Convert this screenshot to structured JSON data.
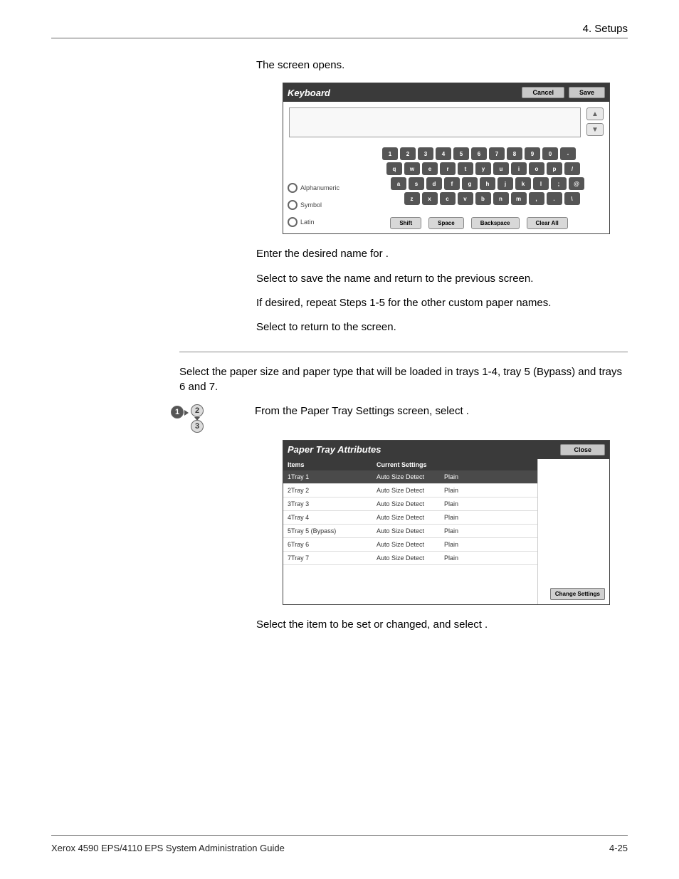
{
  "header": {
    "chapter": "4. Setups"
  },
  "body": {
    "p1_a": "The ",
    "p1_b": " screen opens.",
    "p2_a": "Enter the desired name for ",
    "p2_b": ".",
    "p3_a": "Select ",
    "p3_b": " to save the name and return to the previous screen.",
    "p4": "If desired, repeat Steps 1-5 for the other custom paper names.",
    "p5_a": "Select ",
    "p5_b": " to return to the ",
    "p5_c": " screen.",
    "section_heading": "",
    "p6": "Select the paper size and paper type that will be loaded in trays 1-4, tray 5 (Bypass) and trays 6 and 7.",
    "p7_a": "From the Paper Tray Settings screen, select ",
    "p7_b": ".",
    "p8_a": "Select the item to be set or changed, and select ",
    "p8_b": "."
  },
  "keyboard": {
    "title": "Keyboard",
    "cancel": "Cancel",
    "save": "Save",
    "opt_alpha": "Alphanumeric",
    "opt_symbol": "Symbol",
    "opt_latin": "Latin",
    "row1": [
      "1",
      "2",
      "3",
      "4",
      "5",
      "6",
      "7",
      "8",
      "9",
      "0",
      "-"
    ],
    "row2": [
      "q",
      "w",
      "e",
      "r",
      "t",
      "y",
      "u",
      "i",
      "o",
      "p",
      "/"
    ],
    "row3": [
      "a",
      "s",
      "d",
      "f",
      "g",
      "h",
      "j",
      "k",
      "l",
      ";",
      "@"
    ],
    "row4": [
      "z",
      "x",
      "c",
      "v",
      "b",
      "n",
      "m",
      ",",
      ".",
      "\\"
    ],
    "shift": "Shift",
    "space": "Space",
    "backspace": "Backspace",
    "clear": "Clear All"
  },
  "pta": {
    "title": "Paper Tray Attributes",
    "close": "Close",
    "col_items": "Items",
    "col_cs": "Current Settings",
    "change": "Change Settings",
    "rows": [
      {
        "item": "1Tray 1",
        "setting1": "Auto Size Detect",
        "setting2": "Plain",
        "selected": true
      },
      {
        "item": "2Tray 2",
        "setting1": "Auto Size Detect",
        "setting2": "Plain",
        "selected": false
      },
      {
        "item": "3Tray 3",
        "setting1": "Auto Size Detect",
        "setting2": "Plain",
        "selected": false
      },
      {
        "item": "4Tray 4",
        "setting1": "Auto Size Detect",
        "setting2": "Plain",
        "selected": false
      },
      {
        "item": "5Tray 5 (Bypass)",
        "setting1": "Auto Size Detect",
        "setting2": "Plain",
        "selected": false
      },
      {
        "item": "6Tray 6",
        "setting1": "Auto Size Detect",
        "setting2": "Plain",
        "selected": false
      },
      {
        "item": "7Tray 7",
        "setting1": "Auto Size Detect",
        "setting2": "Plain",
        "selected": false
      }
    ]
  },
  "footer": {
    "left": "Xerox 4590 EPS/4110 EPS System Administration Guide",
    "right": "4-25"
  }
}
